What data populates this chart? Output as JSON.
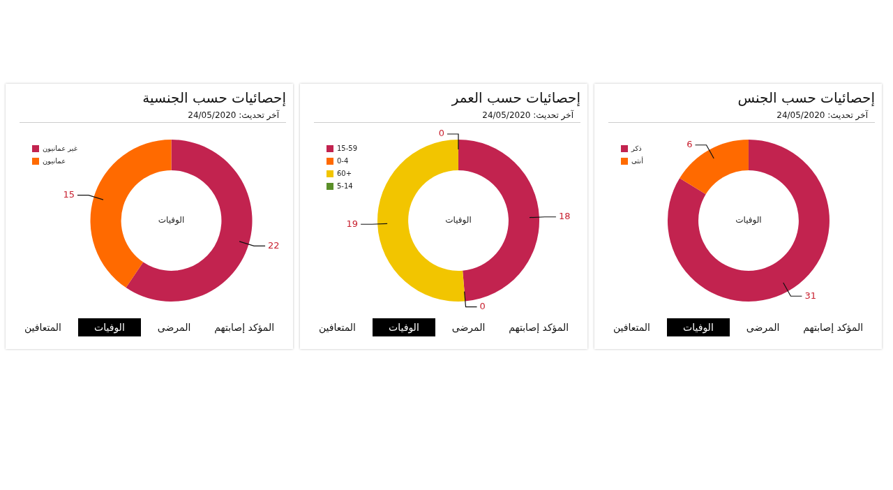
{
  "chart_data": [
    {
      "type": "donut",
      "title": "إحصائيات حسب الجنسية",
      "subtitle": "آخر تحديث: 24/05/2020",
      "categories": [
        "غير عمانيون",
        "عمانيون"
      ],
      "values": [
        22,
        15
      ],
      "colors": [
        "#c2234f",
        "#ff6a00"
      ],
      "data_labels": true,
      "legend": "top left",
      "annotations": [
        "الوفيات",
        "المؤكد إصابتهم",
        "المرضى",
        "الوفيات",
        "المتعافين"
      ]
    },
    {
      "type": "donut",
      "title": "إحصائيات حسب العمر",
      "subtitle": "آخر تحديث: 24/05/2020",
      "categories": [
        "15-59",
        "0-4",
        "60+",
        "5-14"
      ],
      "values": [
        18,
        0,
        19,
        0
      ],
      "value_labels": [
        "18",
        "0",
        "19",
        "0"
      ],
      "colors": [
        "#c2234f",
        "#ff6a00",
        "#f2c500",
        "#5a8f29"
      ],
      "legend": "top left",
      "annotations": [
        "الوفيات",
        "المؤكد إصابتهم",
        "المرضى",
        "الوفيات",
        "المتعافين"
      ]
    },
    {
      "type": "donut",
      "title": "إحصائيات حسب الجنس",
      "subtitle": "آخر تحديث: 24/05/2020",
      "categories": [
        "ذكر",
        "أنثى"
      ],
      "values": [
        31,
        6
      ],
      "colors": [
        "#c2234f",
        "#ff6a00"
      ],
      "data_labels": true,
      "legend": "top left",
      "annotations": [
        "الوفيات",
        "المؤكد إصابتهم",
        "المرضى",
        "الوفيات",
        "المتعافين"
      ]
    }
  ]
}
